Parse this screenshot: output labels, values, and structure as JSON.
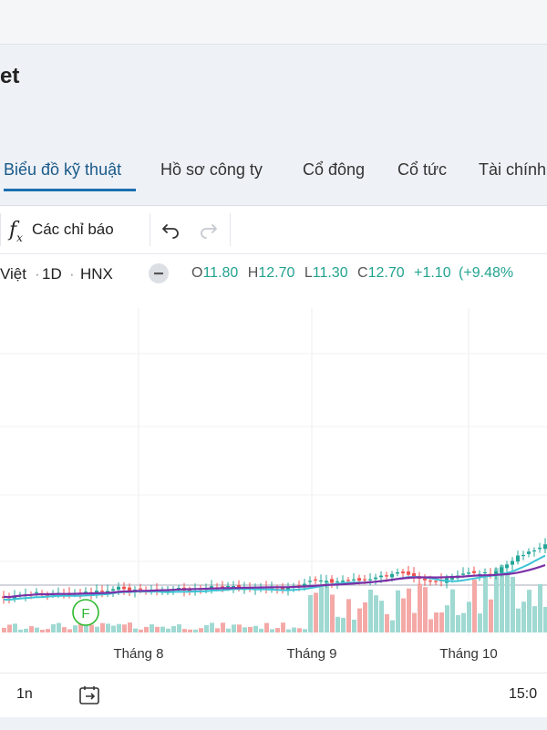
{
  "page": {
    "title": "et"
  },
  "tabs": [
    {
      "label": "Biểu đồ kỹ thuật"
    },
    {
      "label": "Hồ sơ công ty"
    },
    {
      "label": "Cổ đông"
    },
    {
      "label": "Cổ tức"
    },
    {
      "label": "Tài chính"
    }
  ],
  "toolbar": {
    "fx_symbol": "f",
    "fx_sub": "x",
    "indicators_label": "Các chỉ báo",
    "undo_icon": "undo-icon",
    "redo_icon": "redo-icon"
  },
  "legend": {
    "symbol_fragment": "Việt",
    "interval": "1D",
    "exchange": "HNX",
    "o_label": "O",
    "o_value": "11.80",
    "h_label": "H",
    "h_value": "12.70",
    "l_label": "L",
    "l_value": "11.30",
    "c_label": "C",
    "c_value": "12.70",
    "change": "+1.10",
    "change_pct": "(+9.48%"
  },
  "colors": {
    "up": "#26a69a",
    "down": "#ef5350",
    "ma_purple": "#7b2fa6",
    "ma_cyan": "#3cc3d6",
    "accent": "#1a6fb0"
  },
  "chart_data": {
    "type": "candlestick",
    "x_labels": [
      "Tháng 8",
      "Tháng 9",
      "Tháng 10"
    ],
    "marker": "F",
    "price_range_visible": [
      10.5,
      13.0
    ]
  },
  "bottom": {
    "range_label": "1n",
    "time_partial": "15:0"
  }
}
